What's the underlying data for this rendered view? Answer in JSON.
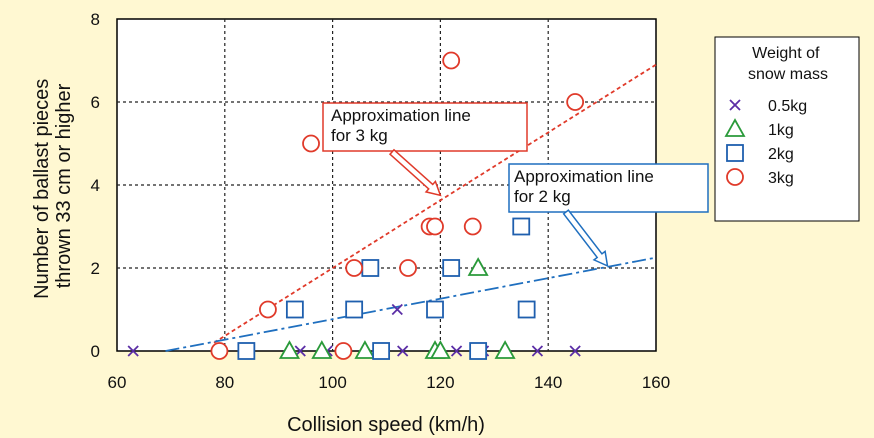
{
  "chart_data": {
    "type": "scatter",
    "xlabel": "Collision speed (km/h)",
    "ylabel": [
      "Number of ballast pieces",
      "thrown 33 cm or higher"
    ],
    "xlim": [
      60,
      160
    ],
    "ylim": [
      0,
      8
    ],
    "x_ticks": [
      60,
      80,
      100,
      120,
      140,
      160
    ],
    "y_ticks": [
      0,
      2,
      4,
      6,
      8
    ],
    "grid": true,
    "legend": {
      "title": [
        "Weight of",
        "snow mass"
      ],
      "placement": "right",
      "entries": [
        "0.5kg",
        "1kg",
        "2kg",
        "3kg"
      ]
    },
    "series": [
      {
        "name": "0.5kg",
        "marker": "x",
        "color": "#5b2ea6",
        "points": [
          [
            63,
            0
          ],
          [
            79,
            0
          ],
          [
            94,
            0
          ],
          [
            99,
            0
          ],
          [
            112,
            1
          ],
          [
            113,
            0
          ],
          [
            123,
            0
          ],
          [
            128,
            0
          ],
          [
            138,
            0
          ],
          [
            145,
            0
          ]
        ]
      },
      {
        "name": "1kg",
        "marker": "triangle",
        "color": "#2a9a3a",
        "points": [
          [
            92,
            0
          ],
          [
            98,
            0
          ],
          [
            106,
            0
          ],
          [
            119,
            0
          ],
          [
            120,
            0
          ],
          [
            127,
            2
          ],
          [
            132,
            0
          ]
        ]
      },
      {
        "name": "2kg",
        "marker": "square",
        "color": "#1f5fae",
        "points": [
          [
            84,
            0
          ],
          [
            93,
            1
          ],
          [
            104,
            1
          ],
          [
            107,
            2
          ],
          [
            109,
            0
          ],
          [
            119,
            1
          ],
          [
            122,
            2
          ],
          [
            127,
            0
          ],
          [
            135,
            3
          ],
          [
            136,
            1
          ]
        ]
      },
      {
        "name": "3kg",
        "marker": "circle",
        "color": "#e03a2a",
        "points": [
          [
            79,
            0
          ],
          [
            88,
            1
          ],
          [
            96,
            5
          ],
          [
            102,
            0
          ],
          [
            104,
            2
          ],
          [
            114,
            2
          ],
          [
            118,
            3
          ],
          [
            119,
            3
          ],
          [
            122,
            7
          ],
          [
            126,
            3
          ],
          [
            145,
            6
          ]
        ]
      }
    ],
    "fit_lines": [
      {
        "series": "3kg",
        "style": "dotted",
        "color": "#e03a2a",
        "points": [
          [
            78,
            0.2
          ],
          [
            160,
            6.9
          ]
        ]
      },
      {
        "series": "2kg",
        "style": "dash-dot",
        "color": "#1f6fbf",
        "points": [
          [
            69,
            0
          ],
          [
            160,
            2.25
          ]
        ]
      }
    ],
    "annotations": [
      {
        "text": [
          "Approximation line",
          "for 3 kg"
        ],
        "color": "#e03a2a",
        "target": [
          120,
          3.75
        ]
      },
      {
        "text": [
          "Approximation line",
          "for 2 kg"
        ],
        "color": "#1f6fbf",
        "target": [
          151,
          2.05
        ]
      }
    ]
  }
}
